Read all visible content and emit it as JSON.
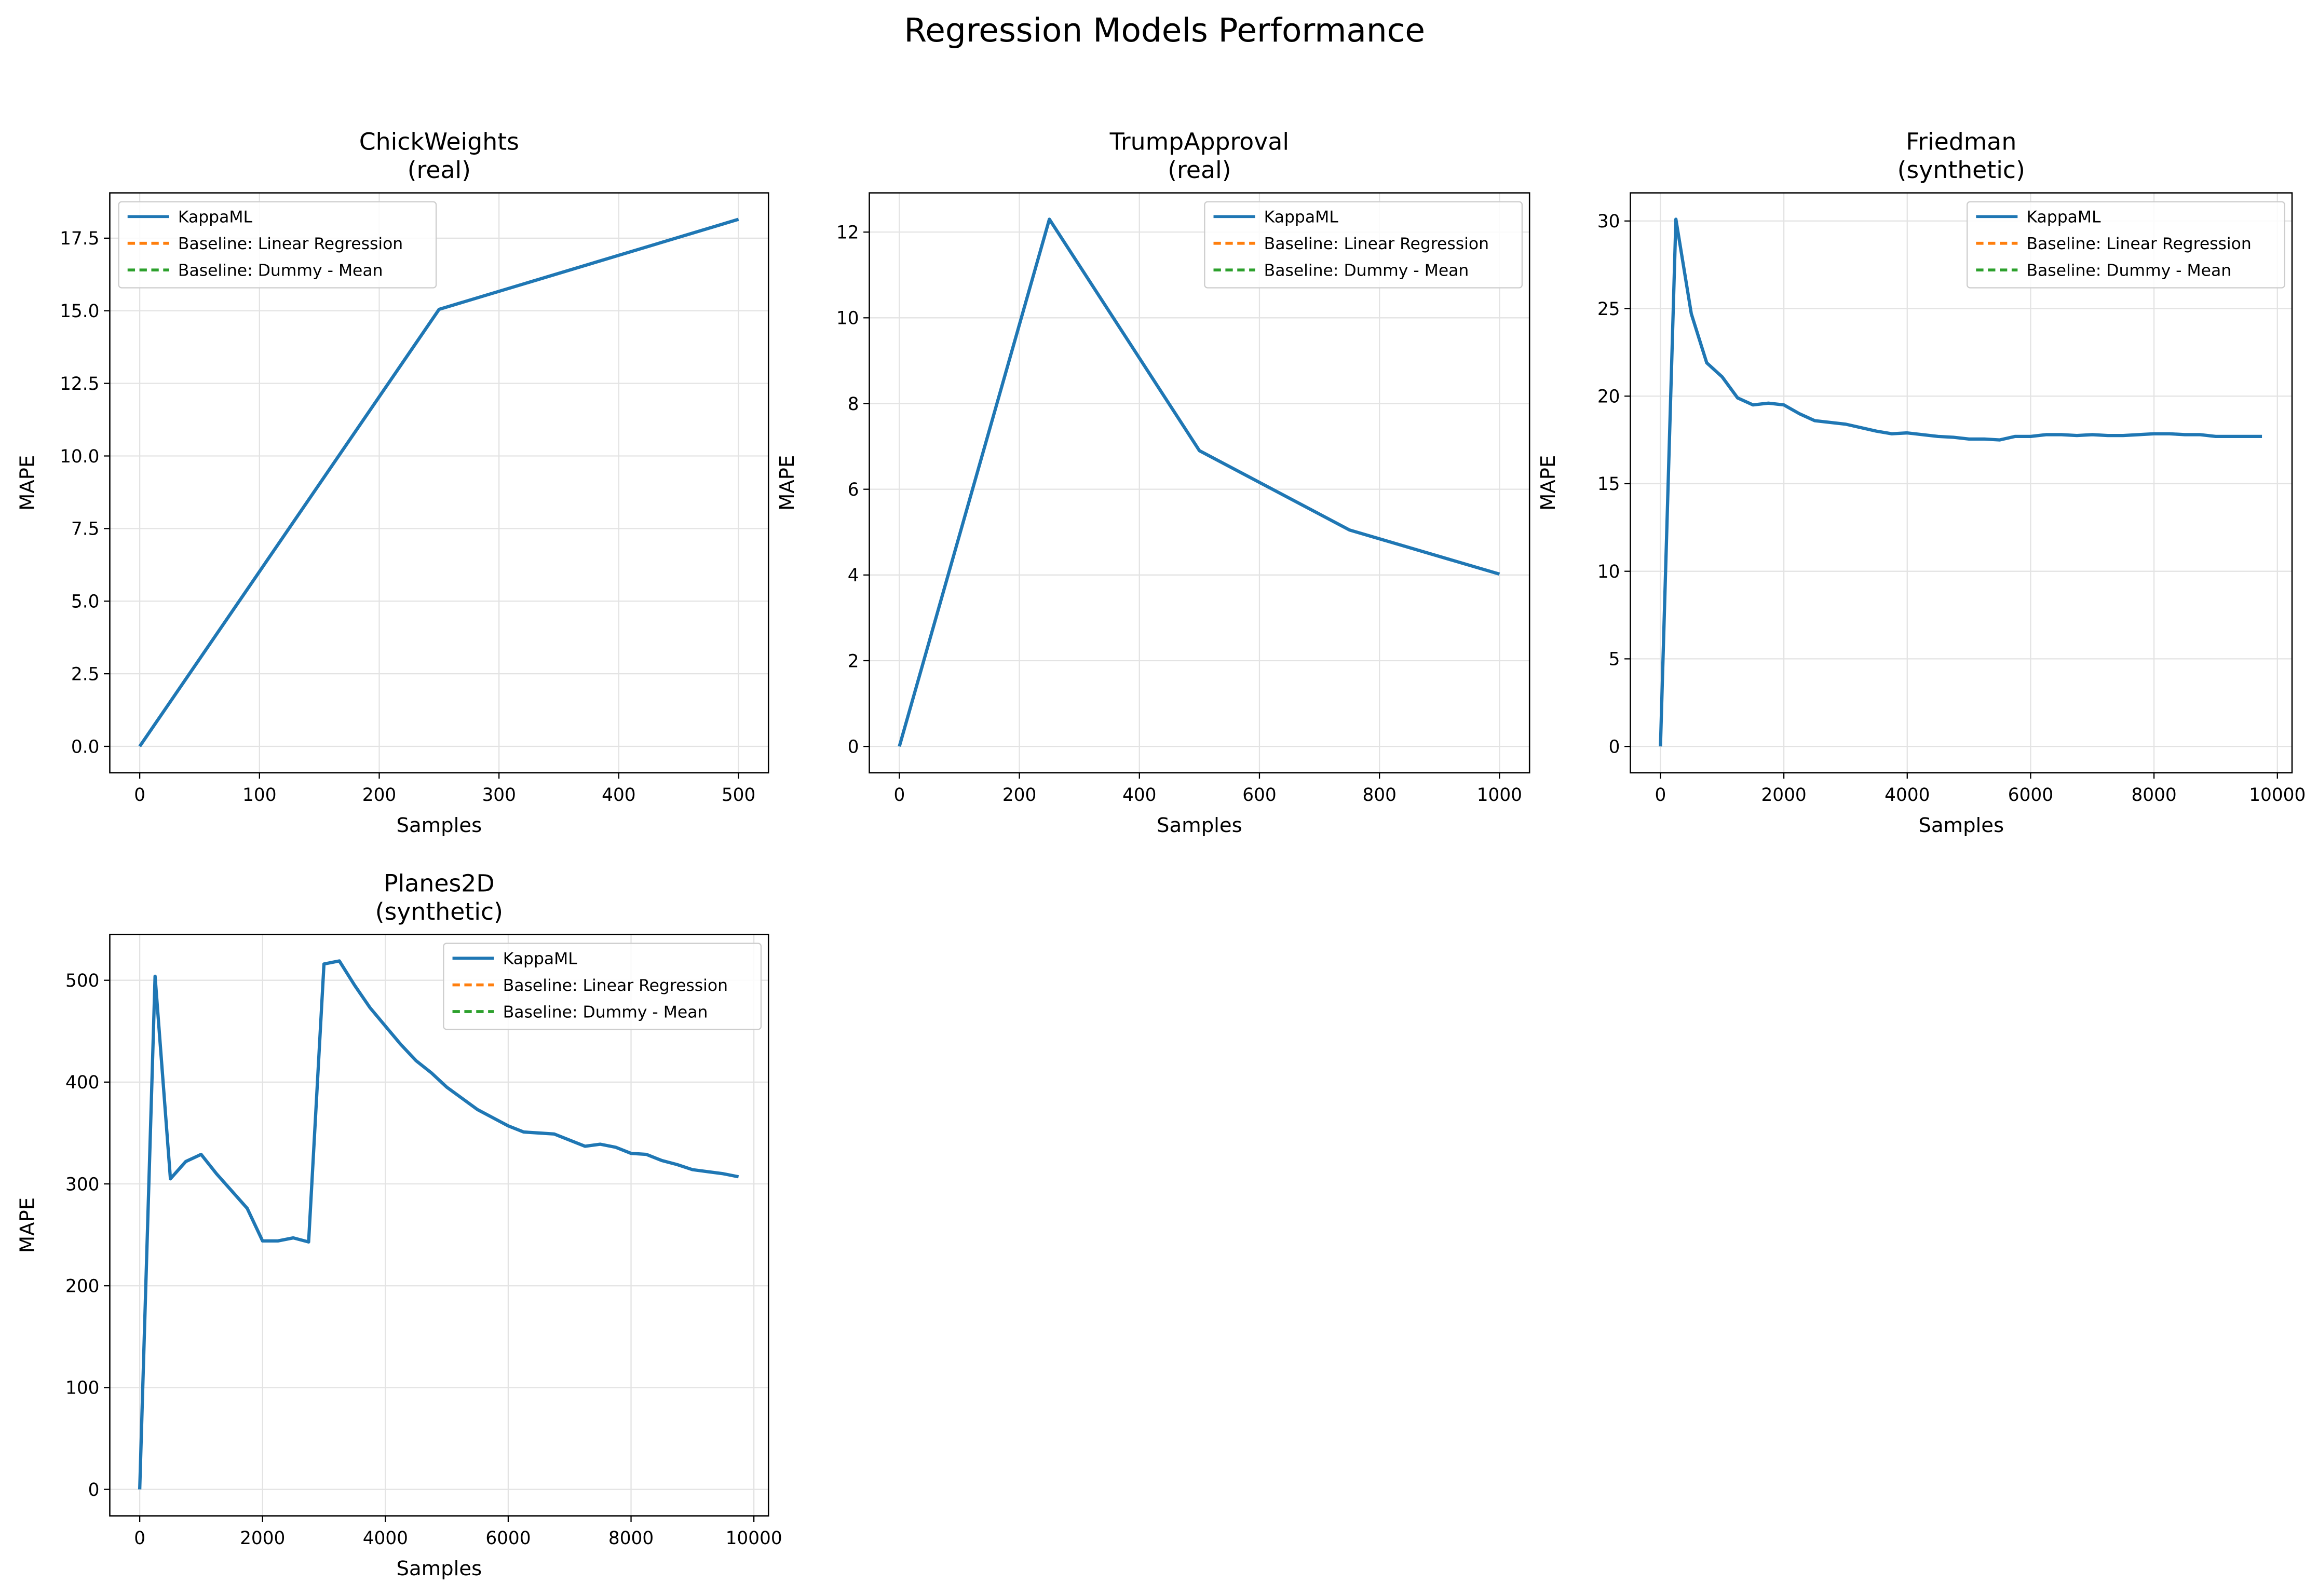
{
  "title": "Regression Models Performance",
  "chart_data": [
    {
      "type": "line",
      "title": "ChickWeights",
      "subtitle": "(real)",
      "xlabel": "Samples",
      "ylabel": "MAPE",
      "x": [
        0,
        250,
        500
      ],
      "series": [
        {
          "name": "KappaML",
          "color": "#1f77b4",
          "values": [
            0,
            15.05,
            18.15
          ]
        },
        {
          "name": "Baseline: Linear Regression",
          "color": "#ff7f0e",
          "dashed": true,
          "values": [
            null,
            null,
            null
          ]
        },
        {
          "name": "Baseline: Dummy - Mean",
          "color": "#2ca02c",
          "dashed": true,
          "values": [
            null,
            null,
            null
          ]
        }
      ],
      "xlim": [
        -25,
        525
      ],
      "xticks": [
        0,
        100,
        200,
        300,
        400,
        500
      ],
      "ylim": [
        -0.91,
        19.06
      ],
      "yticks": [
        {
          "value": 0,
          "label": "0.0"
        },
        2.5,
        {
          "value": 5,
          "label": "5.0"
        },
        7.5,
        {
          "value": 10,
          "label": "10.0"
        },
        12.5,
        {
          "value": 15,
          "label": "15.0"
        },
        17.5
      ],
      "grid": true,
      "legend": "upper left"
    },
    {
      "type": "line",
      "title": "TrumpApproval",
      "subtitle": "(real)",
      "xlabel": "Samples",
      "ylabel": "MAPE",
      "x": [
        0,
        250,
        500,
        750,
        1000
      ],
      "series": [
        {
          "name": "KappaML",
          "color": "#1f77b4",
          "values": [
            0,
            12.3,
            6.9,
            5.05,
            4.02
          ]
        },
        {
          "name": "Baseline: Linear Regression",
          "color": "#ff7f0e",
          "dashed": true,
          "values": [
            null,
            null,
            null,
            null,
            null
          ]
        },
        {
          "name": "Baseline: Dummy - Mean",
          "color": "#2ca02c",
          "dashed": true,
          "values": [
            null,
            null,
            null,
            null,
            null
          ]
        }
      ],
      "xlim": [
        -50,
        1050
      ],
      "xticks": [
        0,
        200,
        400,
        600,
        800,
        1000
      ],
      "ylim": [
        -0.615,
        12.915
      ],
      "yticks": [
        0,
        2,
        4,
        6,
        8,
        10,
        12
      ],
      "grid": true,
      "legend": "upper right"
    },
    {
      "type": "line",
      "title": "Friedman",
      "subtitle": "(synthetic)",
      "xlabel": "Samples",
      "ylabel": "MAPE",
      "x": [
        0,
        250,
        500,
        750,
        1000,
        1250,
        1500,
        1750,
        2000,
        2250,
        2500,
        2750,
        3000,
        3250,
        3500,
        3750,
        4000,
        4250,
        4500,
        4750,
        5000,
        5250,
        5500,
        5750,
        6000,
        6250,
        6500,
        6750,
        7000,
        7250,
        7500,
        7750,
        8000,
        8250,
        8500,
        8750,
        9000,
        9250,
        9500,
        9750
      ],
      "series": [
        {
          "name": "KappaML",
          "color": "#1f77b4",
          "values": [
            0,
            30.1,
            24.7,
            21.9,
            21.1,
            19.9,
            19.5,
            19.6,
            19.5,
            19.0,
            18.6,
            18.5,
            18.4,
            18.2,
            18.0,
            17.85,
            17.9,
            17.8,
            17.7,
            17.65,
            17.55,
            17.55,
            17.5,
            17.7,
            17.7,
            17.8,
            17.8,
            17.75,
            17.8,
            17.75,
            17.75,
            17.8,
            17.85,
            17.85,
            17.8,
            17.8,
            17.7,
            17.7,
            17.7,
            17.7
          ]
        },
        {
          "name": "Baseline: Linear Regression",
          "color": "#ff7f0e",
          "dashed": true,
          "values": [
            null,
            null,
            null,
            null,
            null,
            null,
            null,
            null,
            null,
            null,
            null,
            null,
            null,
            null,
            null,
            null,
            null,
            null,
            null,
            null,
            null,
            null,
            null,
            null,
            null,
            null,
            null,
            null,
            null,
            null,
            null,
            null,
            null,
            null,
            null,
            null,
            null,
            null,
            null,
            null
          ]
        },
        {
          "name": "Baseline: Dummy - Mean",
          "color": "#2ca02c",
          "dashed": true,
          "values": [
            null,
            null,
            null,
            null,
            null,
            null,
            null,
            null,
            null,
            null,
            null,
            null,
            null,
            null,
            null,
            null,
            null,
            null,
            null,
            null,
            null,
            null,
            null,
            null,
            null,
            null,
            null,
            null,
            null,
            null,
            null,
            null,
            null,
            null,
            null,
            null,
            null,
            null,
            null,
            null
          ]
        }
      ],
      "xlim": [
        -487.5,
        10237.5
      ],
      "xticks": [
        0,
        2000,
        4000,
        6000,
        8000,
        10000
      ],
      "ylim": [
        -1.505,
        31.605
      ],
      "yticks": [
        0,
        5,
        10,
        15,
        20,
        25,
        30
      ],
      "grid": true,
      "legend": "upper right"
    },
    {
      "type": "line",
      "title": "Planes2D",
      "subtitle": "(synthetic)",
      "xlabel": "Samples",
      "ylabel": "MAPE",
      "x": [
        0,
        250,
        500,
        750,
        1000,
        1250,
        1500,
        1750,
        2000,
        2250,
        2500,
        2750,
        3000,
        3250,
        3500,
        3750,
        4000,
        4250,
        4500,
        4750,
        5000,
        5250,
        5500,
        5750,
        6000,
        6250,
        6500,
        6750,
        7000,
        7250,
        7500,
        7750,
        8000,
        8250,
        8500,
        8750,
        9000,
        9250,
        9500,
        9750
      ],
      "series": [
        {
          "name": "KappaML",
          "color": "#1f77b4",
          "values": [
            0,
            504,
            305,
            322,
            329,
            310,
            293,
            276,
            244,
            244,
            247,
            243,
            516,
            519,
            495,
            473,
            455,
            437,
            421,
            409,
            395,
            384,
            373,
            365,
            357,
            351,
            350,
            349,
            343,
            337,
            339,
            336,
            330,
            329,
            323,
            319,
            314,
            312,
            310,
            307
          ]
        },
        {
          "name": "Baseline: Linear Regression",
          "color": "#ff7f0e",
          "dashed": true,
          "values": [
            null,
            null,
            null,
            null,
            null,
            null,
            null,
            null,
            null,
            null,
            null,
            null,
            null,
            null,
            null,
            null,
            null,
            null,
            null,
            null,
            null,
            null,
            null,
            null,
            null,
            null,
            null,
            null,
            null,
            null,
            null,
            null,
            null,
            null,
            null,
            null,
            null,
            null,
            null,
            null
          ]
        },
        {
          "name": "Baseline: Dummy - Mean",
          "color": "#2ca02c",
          "dashed": true,
          "values": [
            null,
            null,
            null,
            null,
            null,
            null,
            null,
            null,
            null,
            null,
            null,
            null,
            null,
            null,
            null,
            null,
            null,
            null,
            null,
            null,
            null,
            null,
            null,
            null,
            null,
            null,
            null,
            null,
            null,
            null,
            null,
            null,
            null,
            null,
            null,
            null,
            null,
            null,
            null,
            null
          ]
        }
      ],
      "xlim": [
        -487.5,
        10237.5
      ],
      "xticks": [
        0,
        2000,
        4000,
        6000,
        8000,
        10000
      ],
      "ylim": [
        -26,
        545
      ],
      "yticks": [
        0,
        100,
        200,
        300,
        400,
        500
      ],
      "grid": true,
      "legend": "upper right"
    }
  ]
}
